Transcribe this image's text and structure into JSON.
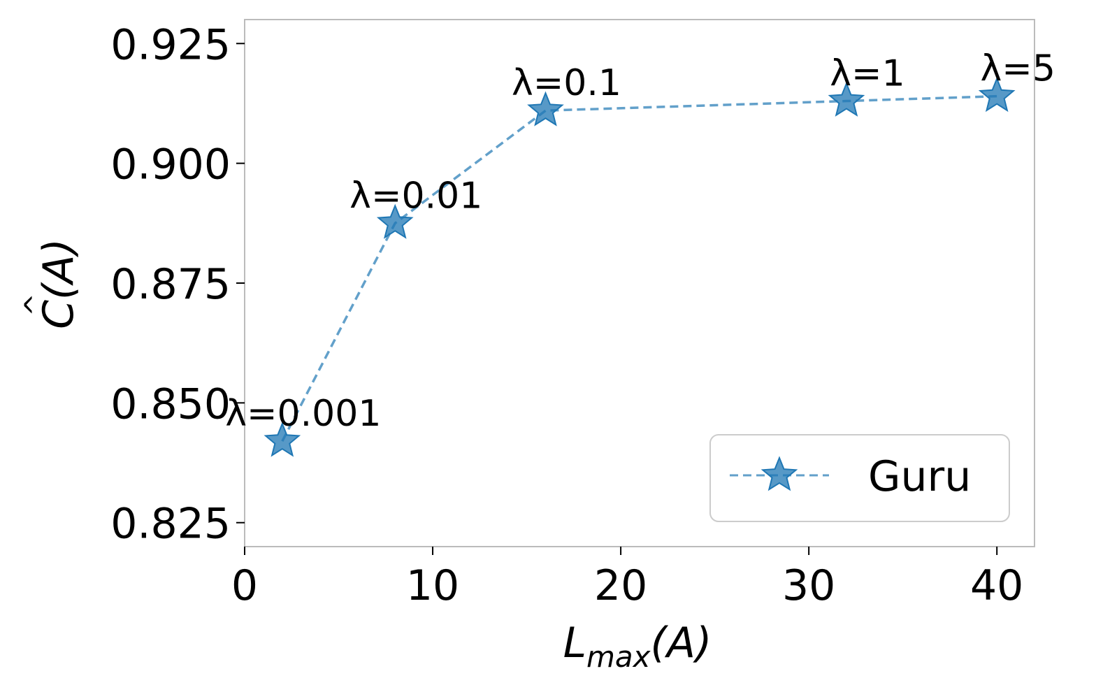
{
  "chart_data": {
    "type": "line",
    "title": "",
    "xlabel": "L",
    "xlabel_sub": "max",
    "xlabel_tail": "(A)",
    "ylabel": "C(A)",
    "ylabel_hat": "^",
    "xlim": [
      0,
      42
    ],
    "ylim": [
      0.82,
      0.93
    ],
    "x_ticks": [
      0,
      10,
      20,
      30,
      40
    ],
    "x_tick_labels": [
      "0",
      "10",
      "20",
      "30",
      "40"
    ],
    "y_ticks": [
      0.825,
      0.85,
      0.875,
      0.9,
      0.925
    ],
    "y_tick_labels": [
      "0.825",
      "0.850",
      "0.875",
      "0.900",
      "0.925"
    ],
    "grid": false,
    "legend_position": "bottom-right",
    "series": [
      {
        "name": "Guru",
        "color": "#1f77b4",
        "line_style": "dashed",
        "marker": "star",
        "x": [
          2,
          8,
          16,
          32,
          40
        ],
        "y": [
          0.842,
          0.8875,
          0.911,
          0.913,
          0.914
        ],
        "annotations": [
          "λ=0.001",
          "λ=0.01",
          "λ=0.1",
          "λ=1",
          "λ=5"
        ]
      }
    ]
  }
}
